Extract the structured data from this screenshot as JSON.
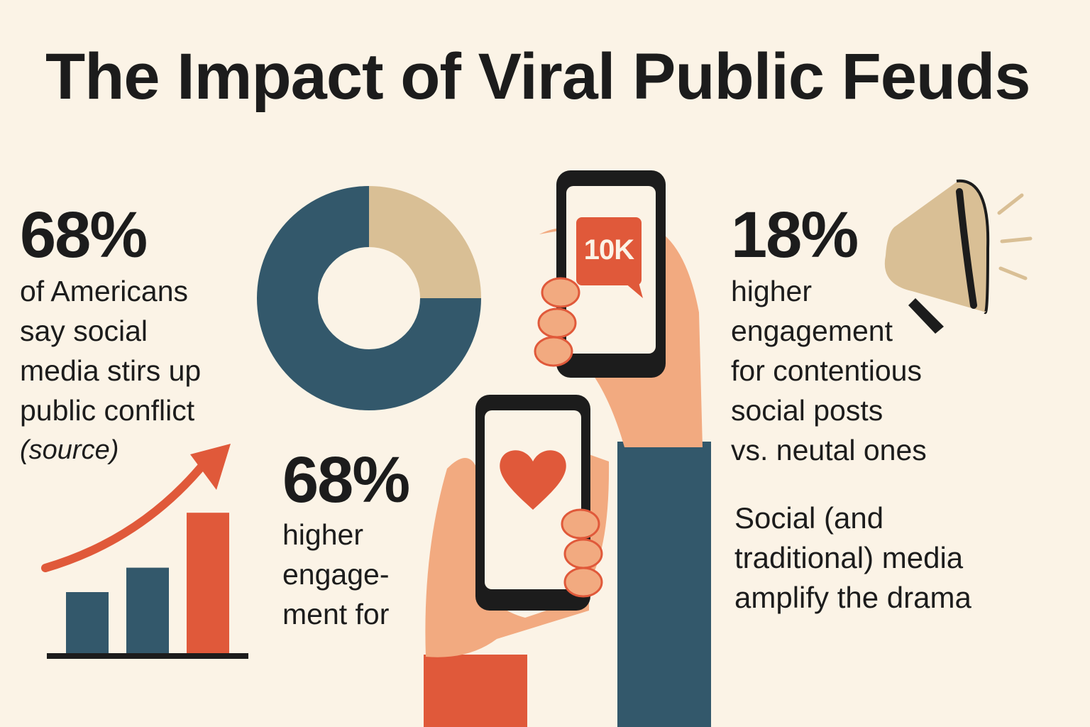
{
  "title": "The Impact of Viral Public Feuds",
  "stat1": {
    "value": "68%",
    "lines": [
      "of Americans",
      "say social",
      "media stirs up",
      "public conflict"
    ],
    "source": "(source)"
  },
  "donut": {
    "segments": [
      {
        "value": 0.75,
        "color": "#33586b"
      },
      {
        "value": 0.25,
        "color": "#d9bf95"
      }
    ]
  },
  "bar_chart": {
    "values": [
      1,
      1.4,
      2.3
    ],
    "colors": [
      "#33586b",
      "#33586b",
      "#e0593a"
    ]
  },
  "stat2": {
    "value": "68%",
    "lines": [
      "higher",
      "engage-",
      "ment for"
    ]
  },
  "phone_badge": "10K",
  "stat3": {
    "value": "18%",
    "lines": [
      "higher",
      "engagement",
      "for contentious",
      "social posts",
      "vs. neutal ones"
    ]
  },
  "caption": {
    "lines": [
      "Social (and",
      "traditional) media",
      "amplify the drama"
    ]
  },
  "colors": {
    "background": "#fbf3e6",
    "navy": "#33586b",
    "orange": "#e0593a",
    "tan": "#d9bf95",
    "skin": "#f2aa80",
    "dark": "#1c1c1c"
  },
  "icons": [
    "trend-arrow-icon",
    "heart-icon",
    "megaphone-icon",
    "phone-icon",
    "hand-icon"
  ]
}
